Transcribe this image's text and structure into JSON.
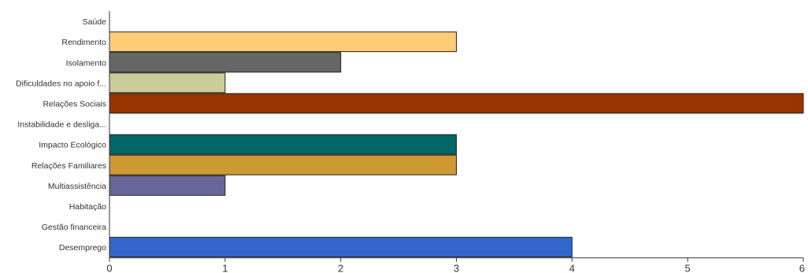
{
  "chart_data": {
    "type": "bar",
    "orientation": "horizontal",
    "categories": [
      "Saúde",
      "Rendimento",
      "Isolamento",
      "Dificuldades no apoio f...",
      "Relações Sociais",
      "Instabilidade e desliga...",
      "Impacto Ecológico",
      "Relações Familiares",
      "Multiassistência",
      "Habitação",
      "Gestão financeira",
      "Desemprego"
    ],
    "values": [
      0,
      3,
      2,
      1,
      6,
      0,
      3,
      3,
      1,
      0,
      0,
      4
    ],
    "bar_colors": [
      "#ffffff",
      "#ffcc77",
      "#666666",
      "#cccc99",
      "#993300",
      "#ffffff",
      "#006666",
      "#cc9933",
      "#666699",
      "#ffffff",
      "#ffffff",
      "#3366cc"
    ],
    "xlim": [
      0,
      6
    ],
    "x_ticks": [
      "0",
      "1",
      "2",
      "3",
      "4",
      "5",
      "6"
    ],
    "grid": false,
    "title": "",
    "xlabel": "",
    "ylabel": ""
  }
}
